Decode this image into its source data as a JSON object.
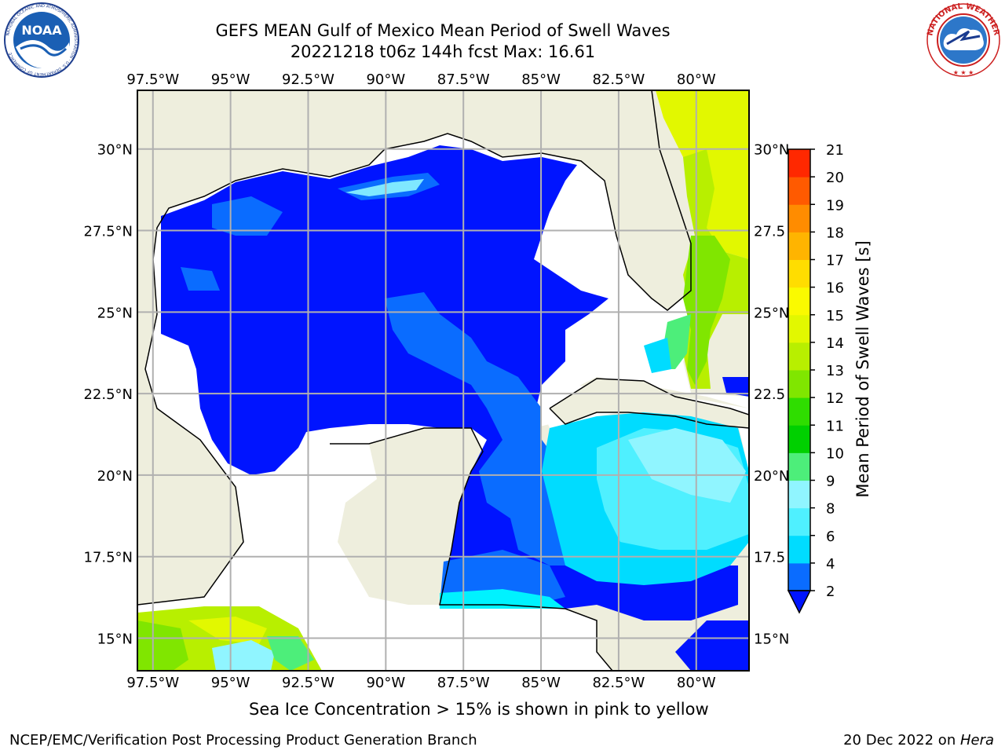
{
  "header": {
    "title": "GEFS MEAN Gulf of Mexico Mean Period of Swell Waves",
    "subtitle": "20221218 t06z 144h fcst   Max: 16.61"
  },
  "logos": {
    "left": {
      "icon": "noaa-logo",
      "text": "NOAA",
      "ring_text": "NATIONAL OCEANIC AND ATMOSPHERIC ADMINISTRATION · U.S. DEPARTMENT OF COMMERCE"
    },
    "right": {
      "icon": "nws-logo",
      "ring_text": "NATIONAL WEATHER SERVICE"
    }
  },
  "map": {
    "lon_ticks": [
      "97.5°W",
      "95°W",
      "92.5°W",
      "90°W",
      "87.5°W",
      "85°W",
      "82.5°W",
      "80°W"
    ],
    "lat_ticks": [
      "30°N",
      "27.5°N",
      "25°N",
      "22.5°N",
      "20°N",
      "17.5°N",
      "15°N"
    ],
    "right_lat_ticks": [
      "30°N",
      "27.5",
      "25°N",
      "22.5",
      "20°N",
      "17.5",
      "15°N"
    ],
    "extent": {
      "lon_min": -98,
      "lon_max": -78.3,
      "lat_min": 14.0,
      "lat_max": 31.8
    },
    "grid": true,
    "land_color": "#eeeedd",
    "no_data_color": "#ffffff"
  },
  "colorbar": {
    "label": "Mean Period of Swell Waves [s]",
    "ticks": [
      "21",
      "20",
      "19",
      "18",
      "17",
      "16",
      "15",
      "14",
      "13",
      "12",
      "11",
      "10",
      "9",
      "8",
      "6",
      "4",
      "2"
    ],
    "levels": [
      2,
      4,
      6,
      8,
      9,
      10,
      11,
      12,
      13,
      14,
      15,
      16,
      17,
      18,
      19,
      20,
      21
    ],
    "colors": [
      "#0a6cff",
      "#00dcff",
      "#4ff0ff",
      "#90f5ff",
      "#4dee7a",
      "#00d000",
      "#2fdd00",
      "#80e600",
      "#b8ef00",
      "#e2f800",
      "#fafa00",
      "#ffdd00",
      "#ffb400",
      "#ff8c00",
      "#ff5a00",
      "#ff2800"
    ],
    "under_color": "#0014ff",
    "extend": "min"
  },
  "note": "Sea Ice Concentration > 15% is shown in pink to yellow",
  "footer": {
    "left": "NCEP/EMC/Verification Post Processing Product Generation Branch",
    "right_prefix": "20 Dec 2022 on ",
    "right_host": "Hera"
  }
}
